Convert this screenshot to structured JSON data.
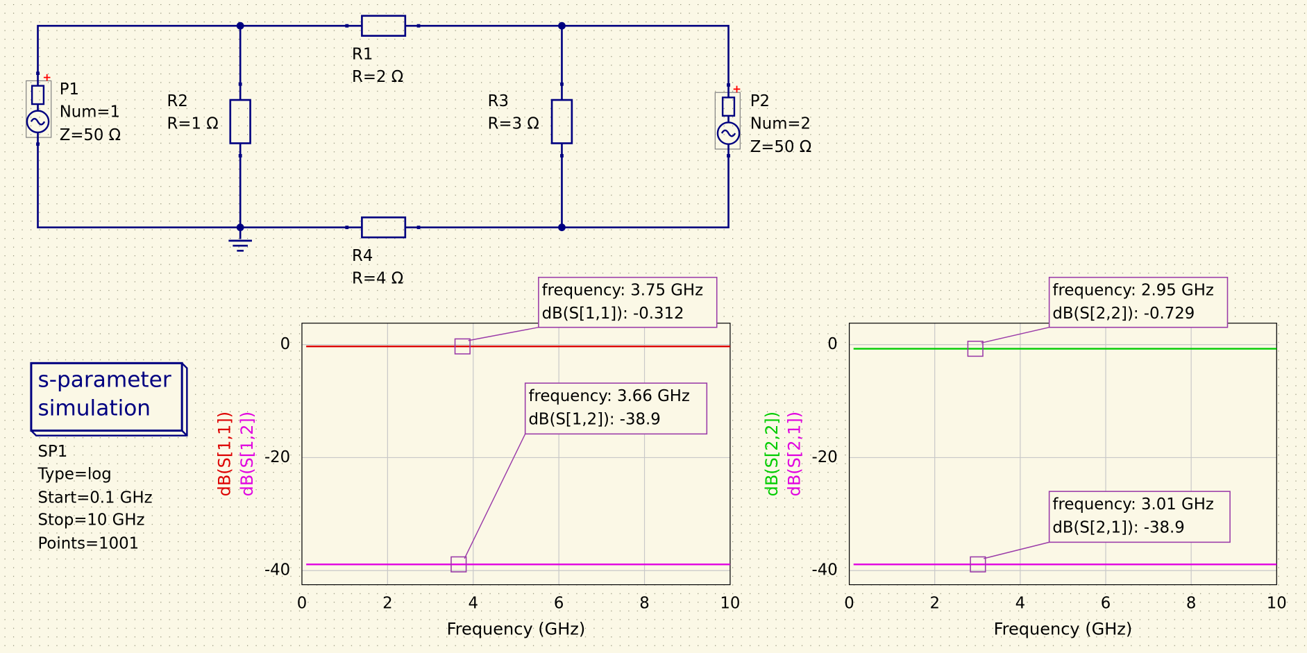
{
  "schematic": {
    "ports": [
      {
        "name": "P1",
        "num": "Num=1",
        "z": "Z=50 Ω"
      },
      {
        "name": "P2",
        "num": "Num=2",
        "z": "Z=50 Ω"
      }
    ],
    "resistors": [
      {
        "name": "R1",
        "value": "R=2 Ω"
      },
      {
        "name": "R2",
        "value": "R=1 Ω"
      },
      {
        "name": "R3",
        "value": "R=3 Ω"
      },
      {
        "name": "R4",
        "value": "R=4 Ω"
      }
    ]
  },
  "simulation": {
    "title_lines": [
      "s-parameter",
      "simulation"
    ],
    "name": "SP1",
    "params": [
      "Type=log",
      "Start=0.1 GHz",
      "Stop=10 GHz",
      "Points=1001"
    ]
  },
  "chart_data": [
    {
      "type": "line",
      "x_label": "Frequency (GHz)",
      "xlim": [
        0,
        10
      ],
      "xticks": [
        0,
        2,
        4,
        6,
        8,
        10
      ],
      "ylim": [
        -42.5,
        3.8
      ],
      "yticks": [
        -40,
        -20,
        0
      ],
      "grid": true,
      "series": [
        {
          "name": "dB(S[1,1])",
          "color": "#dd0000",
          "x": [
            0.1,
            10
          ],
          "values": [
            -0.312,
            -0.312
          ]
        },
        {
          "name": "dB(S[1,2])",
          "color": "#e000e0",
          "x": [
            0.1,
            10
          ],
          "values": [
            -38.9,
            -38.9
          ]
        }
      ],
      "markers": [
        {
          "x": 3.75,
          "y": -0.312,
          "label_lines": [
            "frequency: 3.75 GHz",
            "dB(S[1,1]): -0.312"
          ]
        },
        {
          "x": 3.66,
          "y": -38.9,
          "label_lines": [
            "frequency: 3.66 GHz",
            "dB(S[1,2]): -38.9"
          ]
        }
      ]
    },
    {
      "type": "line",
      "x_label": "Frequency (GHz)",
      "xlim": [
        0,
        10
      ],
      "xticks": [
        0,
        2,
        4,
        6,
        8,
        10
      ],
      "ylim": [
        -42.5,
        3.8
      ],
      "yticks": [
        -40,
        -20,
        0
      ],
      "grid": true,
      "series": [
        {
          "name": "dB(S[2,2])",
          "color": "#00cc00",
          "x": [
            0.1,
            10
          ],
          "values": [
            -0.729,
            -0.729
          ]
        },
        {
          "name": "dB(S[2,1])",
          "color": "#e000e0",
          "x": [
            0.1,
            10
          ],
          "values": [
            -38.9,
            -38.9
          ]
        }
      ],
      "markers": [
        {
          "x": 2.95,
          "y": -0.729,
          "label_lines": [
            "frequency: 2.95 GHz",
            "dB(S[2,2]): -0.729"
          ]
        },
        {
          "x": 3.01,
          "y": -38.9,
          "label_lines": [
            "frequency: 3.01 GHz",
            "dB(S[2,1]): -38.9"
          ]
        }
      ]
    }
  ]
}
